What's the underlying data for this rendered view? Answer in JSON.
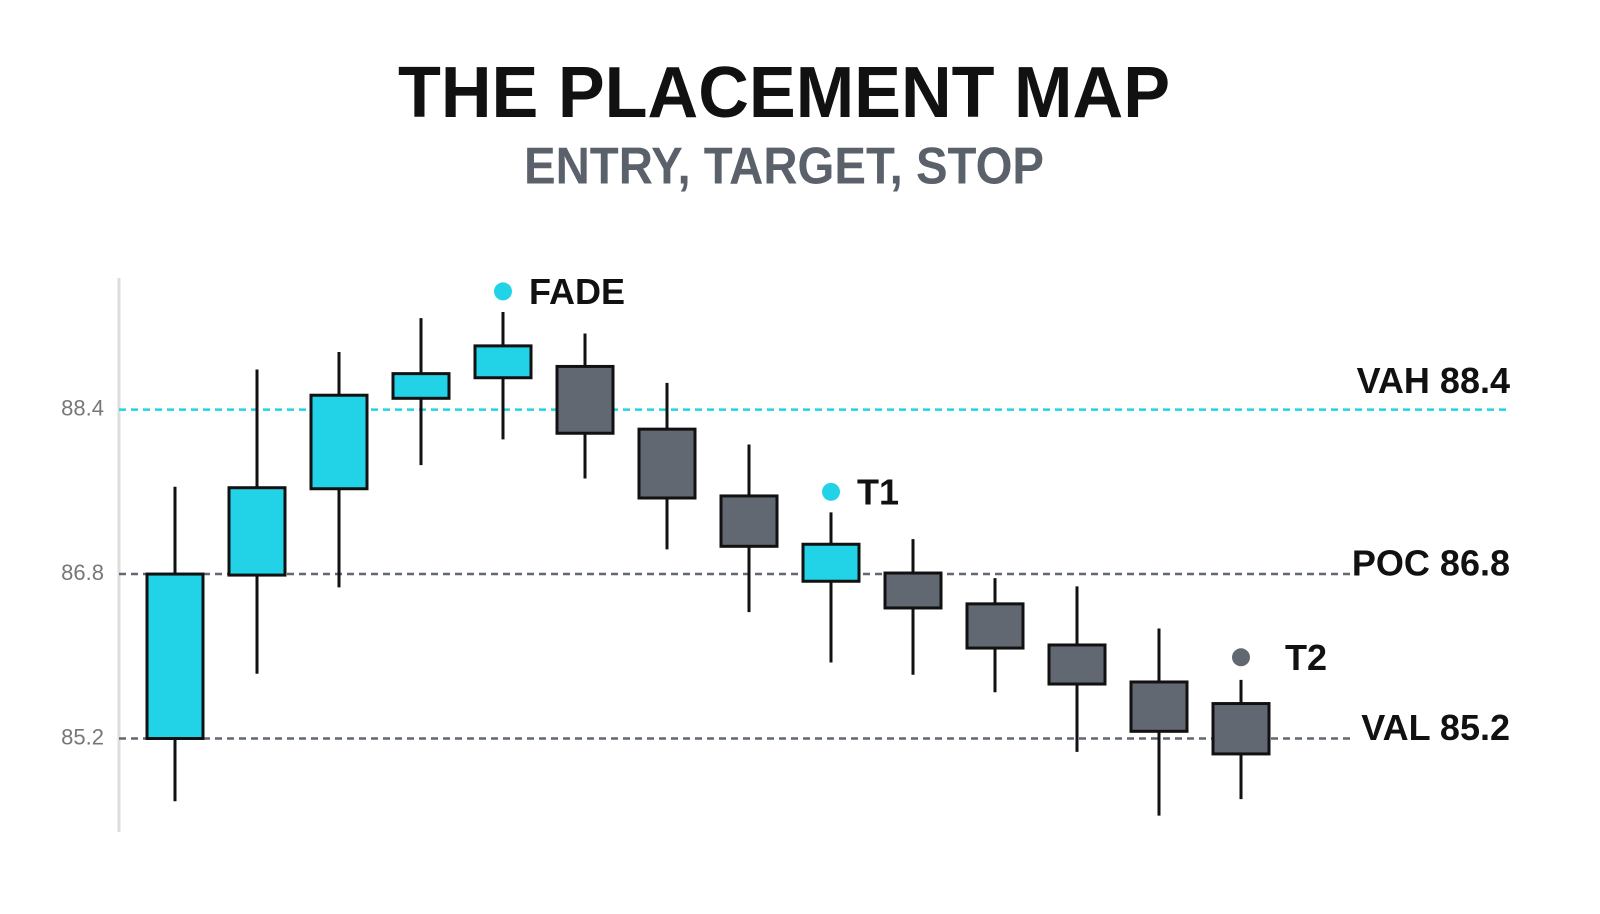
{
  "chart_data": {
    "type": "candlestick",
    "title": "THE PLACEMENT MAP",
    "subtitle": "ENTRY, TARGET, STOP",
    "categories": [
      null,
      null,
      null,
      null,
      null,
      null,
      null,
      null,
      null,
      null,
      null,
      null,
      null,
      null
    ],
    "open": [
      85.2,
      86.79,
      87.63,
      88.51,
      88.71,
      88.82,
      88.21,
      87.56,
      86.73,
      86.81,
      86.51,
      86.11,
      85.75,
      85.54
    ],
    "high": [
      87.65,
      88.79,
      88.96,
      89.29,
      89.35,
      89.14,
      88.66,
      88.06,
      87.4,
      87.14,
      86.76,
      86.68,
      86.27,
      85.77
    ],
    "low": [
      84.59,
      85.83,
      86.67,
      87.86,
      88.11,
      87.73,
      87.04,
      86.43,
      85.94,
      85.82,
      85.65,
      85.07,
      84.45,
      84.61
    ],
    "close": [
      86.8,
      87.64,
      88.54,
      88.75,
      89.02,
      88.17,
      87.54,
      87.07,
      87.09,
      86.47,
      86.08,
      85.73,
      85.27,
      85.05
    ],
    "up_color": "#22d3e8",
    "down_color": "#626872",
    "ylim": [
      84.3,
      89.7
    ],
    "yticks": [
      88.4,
      86.8,
      85.2
    ],
    "levels": [
      {
        "label": "VAH 88.4",
        "value": 88.4,
        "color": "#22d3e8"
      },
      {
        "label": "POC 86.8",
        "value": 86.8,
        "color": "#626872"
      },
      {
        "label": "VAL 85.2",
        "value": 85.2,
        "color": "#626872"
      }
    ],
    "annotations": [
      {
        "text": "FADE",
        "candle": 4,
        "value": 89.55,
        "color": "#22d3e8"
      },
      {
        "text": "T1",
        "candle": 8,
        "value": 87.6,
        "color": "#22d3e8"
      },
      {
        "text": "T2",
        "candle": 13,
        "value": 85.99,
        "color": "#626872"
      }
    ]
  }
}
